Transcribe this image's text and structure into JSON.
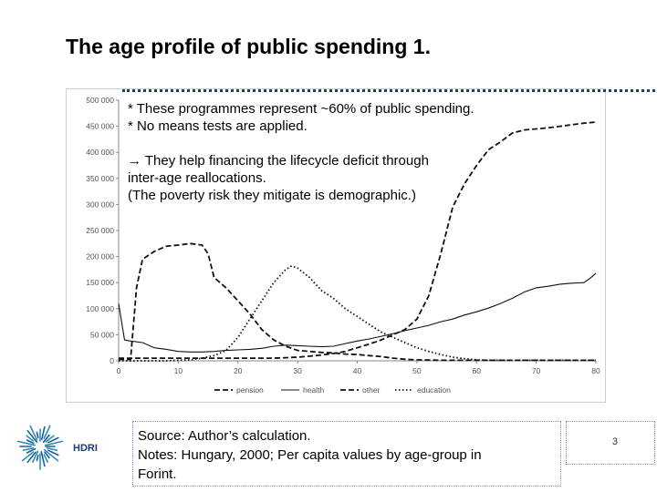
{
  "slide": {
    "title": "The age profile of public spending 1.",
    "notes": [
      "* These programmes represent ~60% of public spending.",
      "* No means tests are applied.",
      "→ They help financing the lifecycle deficit through",
      "inter-age reallocations.",
      "(The poverty risk they mitigate is demographic.)"
    ],
    "source_lines": [
      "Source: Author’s calculation.",
      "Notes: Hungary, 2000; Per capita values by age-group in",
      "Forint."
    ],
    "page_number": "3",
    "logo_text": "HDRI",
    "logo_icon": "starburst-logo-icon"
  },
  "chart_data": {
    "type": "line",
    "title": "",
    "xlabel": "",
    "ylabel": "",
    "xlim": [
      0,
      80
    ],
    "ylim": [
      0,
      500000
    ],
    "x_ticks": [
      "0",
      "10",
      "20",
      "30",
      "40",
      "50",
      "60",
      "70",
      "80"
    ],
    "y_ticks": [
      "0",
      "50 000",
      "100 000",
      "150 000",
      "200 000",
      "250 000",
      "300 000",
      "350 000",
      "400 000",
      "450 000",
      "500 000"
    ],
    "grid": false,
    "legend_position": "bottom",
    "series": [
      {
        "name": "pension",
        "dash": "dashed",
        "x": [
          0,
          2,
          4,
          6,
          8,
          10,
          12,
          14,
          16,
          18,
          20,
          22,
          24,
          26,
          28,
          30,
          32,
          34,
          36,
          38,
          40,
          42,
          44,
          46,
          48,
          50,
          52,
          54,
          56,
          58,
          60,
          62,
          64,
          66,
          68,
          70,
          72,
          74,
          76,
          78,
          80
        ],
        "y": [
          5000,
          5000,
          5000,
          5000,
          5000,
          5000,
          5000,
          5000,
          5000,
          5000,
          5000,
          5000,
          5000,
          5000,
          6000,
          7000,
          9000,
          11000,
          14000,
          18000,
          25000,
          32000,
          40000,
          50000,
          60000,
          80000,
          125000,
          205000,
          295000,
          340000,
          375000,
          405000,
          420000,
          437000,
          443000,
          445000,
          447000,
          450000,
          453000,
          456000,
          458000
        ]
      },
      {
        "name": "health",
        "dash": "solid",
        "x": [
          0,
          1,
          2,
          4,
          6,
          8,
          10,
          12,
          14,
          16,
          18,
          20,
          22,
          24,
          26,
          28,
          30,
          32,
          34,
          36,
          38,
          40,
          42,
          44,
          46,
          48,
          50,
          52,
          54,
          56,
          58,
          60,
          62,
          64,
          66,
          68,
          70,
          72,
          74,
          76,
          78,
          79,
          80
        ],
        "y": [
          110000,
          40000,
          38000,
          35000,
          25000,
          22000,
          18000,
          17000,
          17000,
          18000,
          20000,
          21000,
          22000,
          24000,
          28000,
          30000,
          29000,
          28000,
          27000,
          28000,
          33000,
          38000,
          42000,
          47000,
          52000,
          58000,
          63000,
          68000,
          75000,
          80000,
          88000,
          94000,
          101000,
          110000,
          120000,
          132000,
          140000,
          143000,
          147000,
          149000,
          150000,
          158000,
          168000
        ]
      },
      {
        "name": "other",
        "dash": "dashed",
        "x": [
          0,
          2,
          3,
          4,
          6,
          8,
          10,
          12,
          14,
          15,
          16,
          18,
          20,
          22,
          24,
          26,
          28,
          30,
          32,
          34,
          36,
          38,
          40,
          42,
          44,
          46,
          48,
          50,
          52,
          54,
          56,
          58,
          60,
          70,
          80
        ],
        "y": [
          3000,
          3000,
          140000,
          195000,
          210000,
          220000,
          222000,
          225000,
          222000,
          205000,
          160000,
          140000,
          115000,
          90000,
          60000,
          40000,
          28000,
          20000,
          18000,
          16000,
          15000,
          13000,
          12000,
          10000,
          8000,
          5000,
          3000,
          2000,
          1500,
          1000,
          1000,
          1000,
          1000,
          1000,
          1000
        ]
      },
      {
        "name": "education",
        "dash": "dotted",
        "x": [
          0,
          2,
          4,
          6,
          8,
          10,
          12,
          14,
          16,
          18,
          20,
          22,
          24,
          26,
          28,
          29,
          30,
          32,
          34,
          36,
          38,
          40,
          42,
          44,
          46,
          48,
          50,
          52,
          54,
          56,
          58,
          60,
          62,
          64,
          66,
          70,
          80
        ],
        "y": [
          0,
          0,
          0,
          0,
          0,
          1000,
          2000,
          5000,
          10000,
          20000,
          45000,
          80000,
          115000,
          150000,
          175000,
          182000,
          178000,
          160000,
          135000,
          120000,
          100000,
          85000,
          70000,
          55000,
          45000,
          35000,
          25000,
          18000,
          12000,
          7000,
          4000,
          2000,
          1000,
          1000,
          1000,
          1000,
          1000
        ]
      }
    ]
  }
}
